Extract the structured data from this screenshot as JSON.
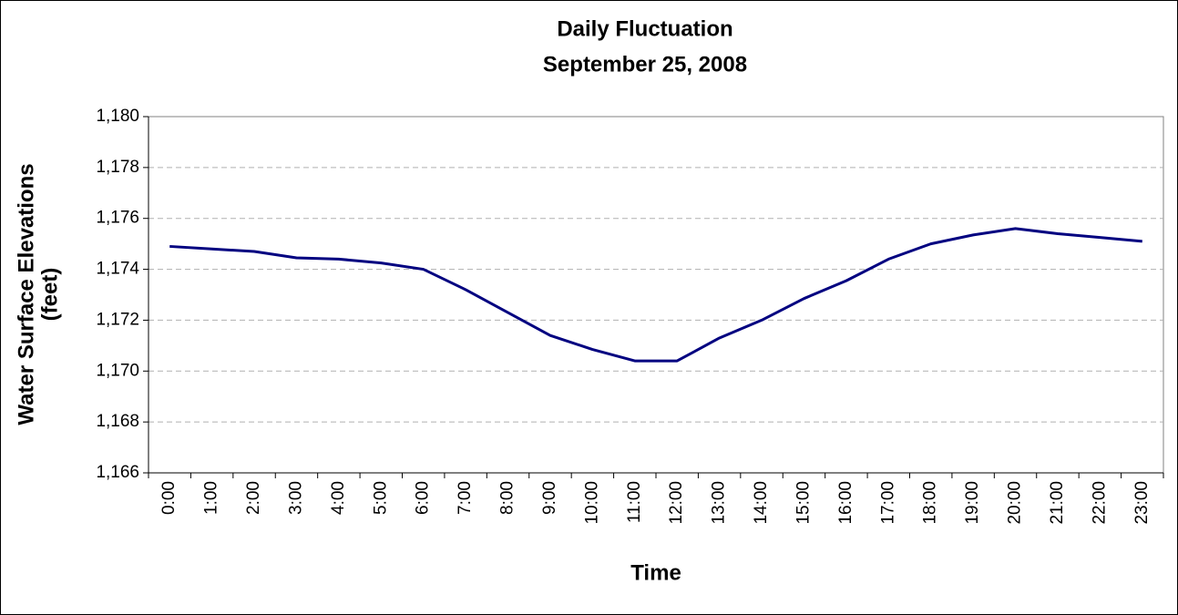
{
  "chart_data": {
    "type": "line",
    "title": "Daily Fluctuation",
    "subtitle": "September 25, 2008",
    "xlabel": "Time",
    "ylabel": [
      "Water Surface Elevations",
      "(feet)"
    ],
    "categories": [
      "0:00",
      "1:00",
      "2:00",
      "3:00",
      "4:00",
      "5:00",
      "6:00",
      "7:00",
      "8:00",
      "9:00",
      "10:00",
      "11:00",
      "12:00",
      "13:00",
      "14:00",
      "15:00",
      "16:00",
      "17:00",
      "18:00",
      "19:00",
      "20:00",
      "21:00",
      "22:00",
      "23:00"
    ],
    "series": [
      {
        "name": "Water Surface Elevations",
        "color": "#000080",
        "values": [
          1174.9,
          1174.8,
          1174.7,
          1174.45,
          1174.4,
          1174.25,
          1174.0,
          1173.2,
          1172.3,
          1171.4,
          1170.85,
          1170.4,
          1170.4,
          1171.3,
          1172.0,
          1172.85,
          1173.55,
          1174.4,
          1175.0,
          1175.35,
          1175.6,
          1175.4,
          1175.25,
          1175.1
        ]
      }
    ],
    "ylim": [
      1166,
      1180
    ],
    "yticks": [
      {
        "value": 1166,
        "label": "1,166"
      },
      {
        "value": 1168,
        "label": "1,168"
      },
      {
        "value": 1170,
        "label": "1,170"
      },
      {
        "value": 1172,
        "label": "1,172"
      },
      {
        "value": 1174,
        "label": "1,174"
      },
      {
        "value": 1176,
        "label": "1,176"
      },
      {
        "value": 1178,
        "label": "1,178"
      },
      {
        "value": 1180,
        "label": "1,180"
      }
    ],
    "grid": true
  }
}
